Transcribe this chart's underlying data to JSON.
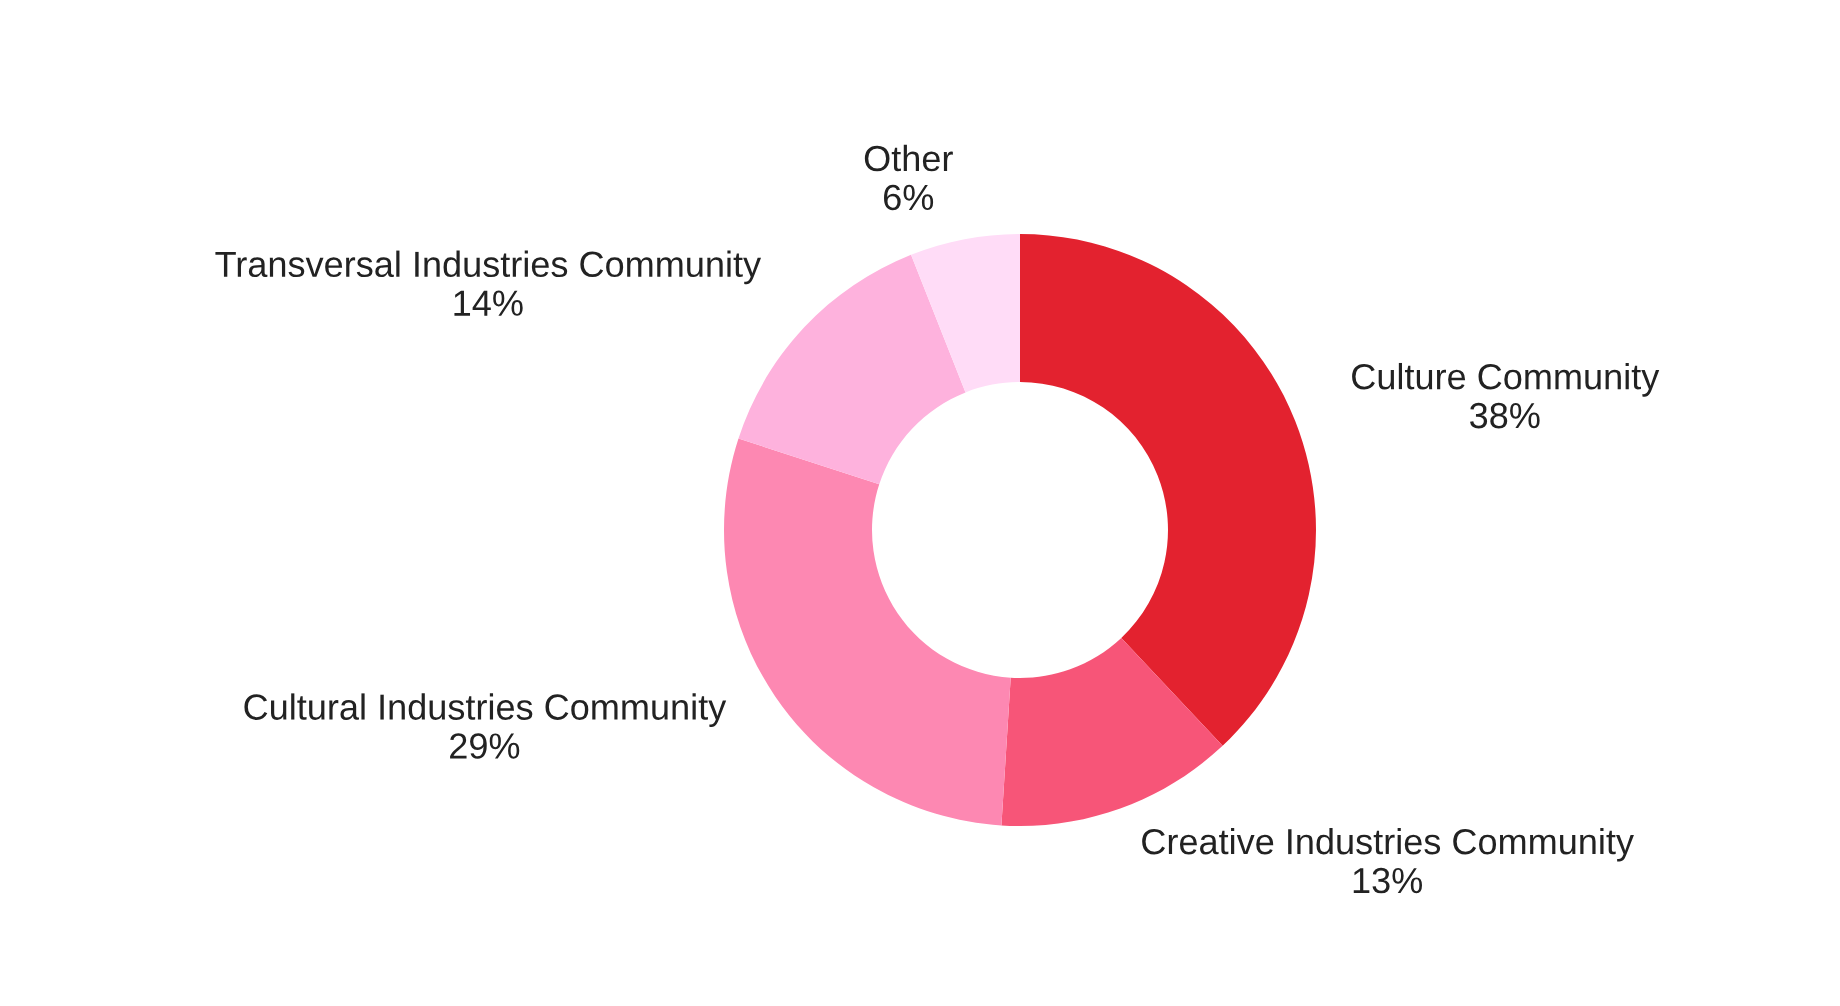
{
  "chart_data": {
    "type": "donut",
    "categories": [
      "Culture Community",
      "Creative Industries Community",
      "Cultural Industries Community",
      "Transversal Industries Community",
      "Other"
    ],
    "values": [
      38,
      13,
      29,
      14,
      6
    ],
    "value_labels": [
      "38%",
      "13%",
      "29%",
      "14%",
      "6%"
    ],
    "colors": [
      "#e3222f",
      "#f75578",
      "#fd88b2",
      "#feb2dd",
      "#ffdcf7"
    ],
    "legend": false
  }
}
